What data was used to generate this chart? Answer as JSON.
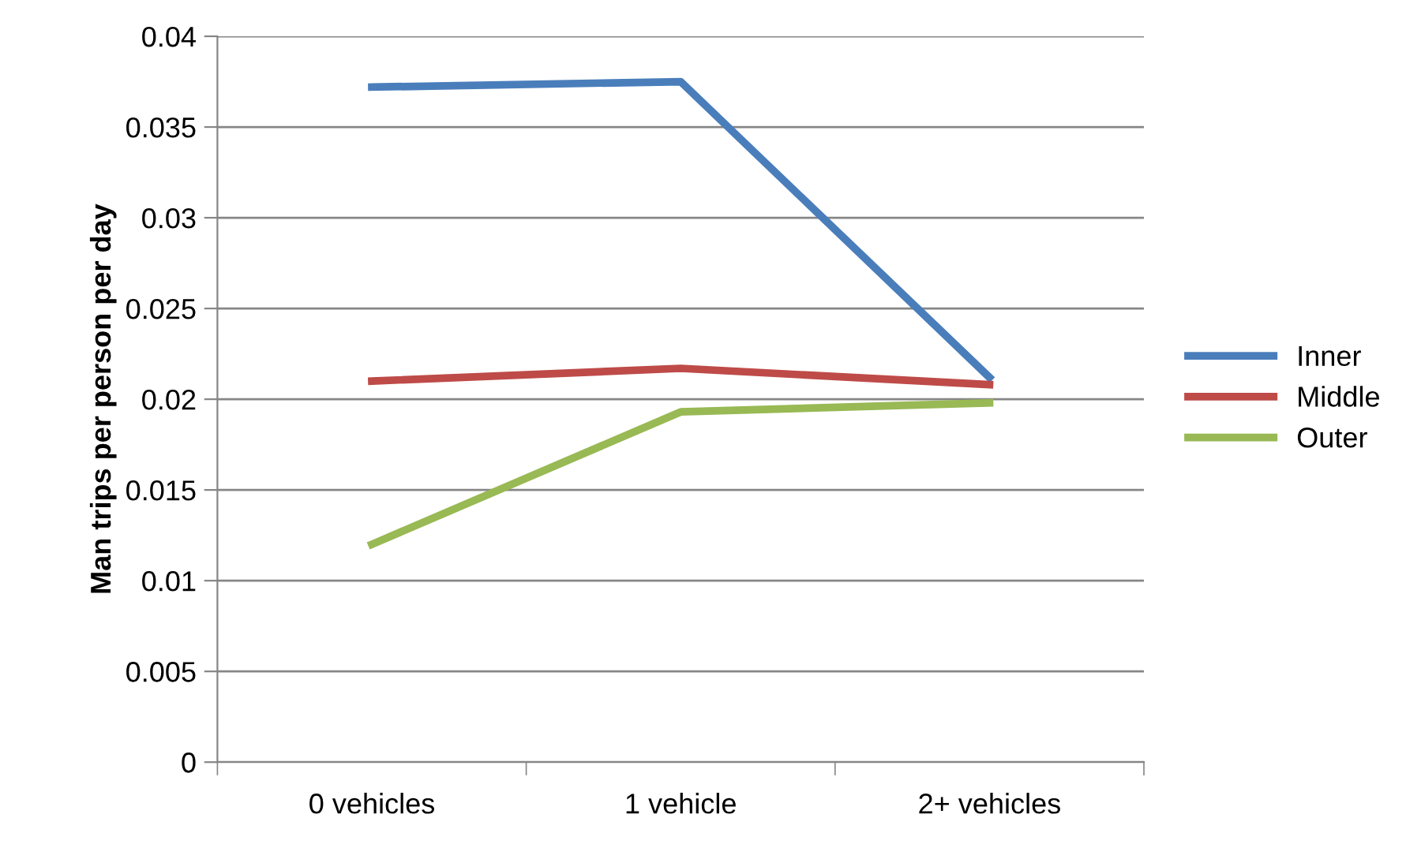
{
  "chart_data": {
    "type": "line",
    "ylabel": "Man trips per person per day",
    "categories": [
      "0 vehicles",
      "1 vehicle",
      "2+ vehicles"
    ],
    "series": [
      {
        "name": "Inner",
        "color": "#4a7ebb",
        "values": [
          0.0372,
          0.0375,
          0.0212
        ]
      },
      {
        "name": "Middle",
        "color": "#be4b48",
        "values": [
          0.021,
          0.0217,
          0.0208
        ]
      },
      {
        "name": "Outer",
        "color": "#98b954",
        "values": [
          0.012,
          0.0193,
          0.0198
        ]
      }
    ],
    "ylim": [
      0,
      0.04
    ],
    "yticks": [
      0,
      0.005,
      0.01,
      0.015,
      0.02,
      0.025,
      0.03,
      0.035,
      0.04
    ],
    "grid": "y",
    "legend": "right",
    "marker": "none",
    "line_style": "solid"
  }
}
